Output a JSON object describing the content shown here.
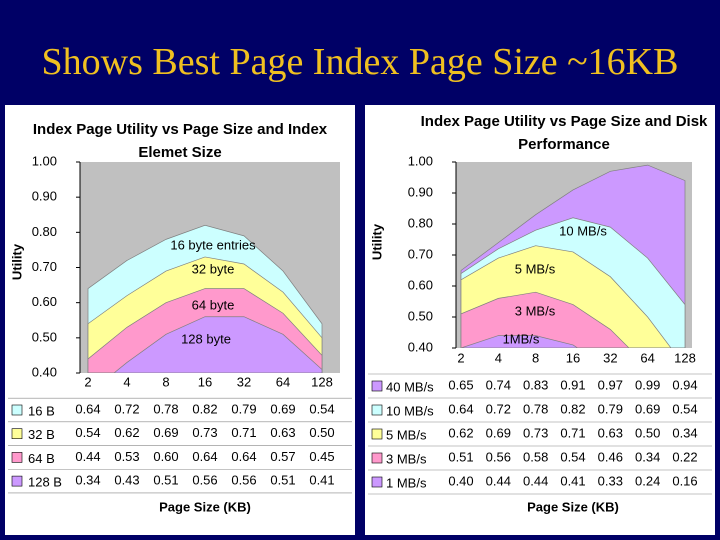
{
  "title": "Shows Best Page Index Page Size ~16KB",
  "chart_data": [
    {
      "type": "area",
      "title": "Index Page Utility vs Page Size and Index Elemet Size",
      "x_label": "Page Size (KB)",
      "y_label": "Utility",
      "categories": [
        "2",
        "4",
        "8",
        "16",
        "32",
        "64",
        "128"
      ],
      "ylim": [
        0.4,
        1.0
      ],
      "yticks": [
        {
          "value": 0.4,
          "label": "0.40"
        },
        {
          "value": 0.5,
          "label": "0.50"
        },
        {
          "value": 0.6,
          "label": "0.60"
        },
        {
          "value": 0.7,
          "label": "0.70"
        },
        {
          "value": 0.8,
          "label": "0.80"
        },
        {
          "value": 0.9,
          "label": "0.90"
        },
        {
          "value": 1.0,
          "label": "1.00"
        }
      ],
      "grid": false,
      "series": [
        {
          "name": "16 B",
          "color": "#ccffff",
          "values": [
            0.64,
            0.72,
            0.78,
            0.82,
            0.79,
            0.69,
            0.54
          ],
          "value_labels": [
            "0.64",
            "0.72",
            "0.78",
            "0.82",
            "0.79",
            "0.69",
            "0.54"
          ]
        },
        {
          "name": "32 B",
          "color": "#ffff99",
          "values": [
            0.54,
            0.62,
            0.69,
            0.73,
            0.71,
            0.63,
            0.5
          ],
          "value_labels": [
            "0.54",
            "0.62",
            "0.69",
            "0.73",
            "0.71",
            "0.63",
            "0.50"
          ]
        },
        {
          "name": "64 B",
          "color": "#ff99cc",
          "values": [
            0.44,
            0.53,
            0.6,
            0.64,
            0.64,
            0.57,
            0.45
          ],
          "value_labels": [
            "0.44",
            "0.53",
            "0.60",
            "0.64",
            "0.64",
            "0.57",
            "0.45"
          ]
        },
        {
          "name": "128 B",
          "color": "#cc99ff",
          "values": [
            0.34,
            0.43,
            0.51,
            0.56,
            0.56,
            0.51,
            0.41
          ],
          "value_labels": [
            "0.34",
            "0.43",
            "0.51",
            "0.56",
            "0.56",
            "0.51",
            "0.41"
          ]
        }
      ],
      "annotations": [
        "16 byte entries",
        "32 byte",
        "64 byte",
        "128 byte"
      ]
    },
    {
      "type": "area",
      "title": "Index Page Utility vs Page Size and Disk Performance",
      "x_label": "Page Size (KB)",
      "y_label": "Utility",
      "categories": [
        "2",
        "4",
        "8",
        "16",
        "32",
        "64",
        "128"
      ],
      "ylim": [
        0.4,
        1.0
      ],
      "yticks": [
        {
          "value": 0.4,
          "label": "0.40"
        },
        {
          "value": 0.5,
          "label": "0.50"
        },
        {
          "value": 0.6,
          "label": "0.60"
        },
        {
          "value": 0.7,
          "label": "0.70"
        },
        {
          "value": 0.8,
          "label": "0.80"
        },
        {
          "value": 0.9,
          "label": "0.90"
        },
        {
          "value": 1.0,
          "label": "1.00"
        }
      ],
      "grid": false,
      "series": [
        {
          "name": "40 MB/s",
          "color": "#cc99ff",
          "values": [
            0.65,
            0.74,
            0.83,
            0.91,
            0.97,
            0.99,
            0.94
          ],
          "value_labels": [
            "0.65",
            "0.74",
            "0.83",
            "0.91",
            "0.97",
            "0.99",
            "0.94"
          ]
        },
        {
          "name": "10 MB/s",
          "color": "#ccffff",
          "values": [
            0.64,
            0.72,
            0.78,
            0.82,
            0.79,
            0.69,
            0.54
          ],
          "value_labels": [
            "0.64",
            "0.72",
            "0.78",
            "0.82",
            "0.79",
            "0.69",
            "0.54"
          ]
        },
        {
          "name": "5 MB/s",
          "color": "#ffff99",
          "values": [
            0.62,
            0.69,
            0.73,
            0.71,
            0.63,
            0.5,
            0.34
          ],
          "value_labels": [
            "0.62",
            "0.69",
            "0.73",
            "0.71",
            "0.63",
            "0.50",
            "0.34"
          ]
        },
        {
          "name": "3 MB/s",
          "color": "#ff99cc",
          "values": [
            0.51,
            0.56,
            0.58,
            0.54,
            0.46,
            0.34,
            0.22
          ],
          "value_labels": [
            "0.51",
            "0.56",
            "0.58",
            "0.54",
            "0.46",
            "0.34",
            "0.22"
          ]
        },
        {
          "name": "1 MB/s",
          "color": "#cc99ff",
          "values": [
            0.4,
            0.44,
            0.44,
            0.41,
            0.33,
            0.24,
            0.16
          ],
          "value_labels": [
            "0.40",
            "0.44",
            "0.44",
            "0.41",
            "0.33",
            "0.24",
            "0.16"
          ]
        }
      ],
      "annotations": [
        "10 MB/s",
        "5 MB/s",
        "3 MB/s",
        "1MB/s"
      ]
    }
  ]
}
